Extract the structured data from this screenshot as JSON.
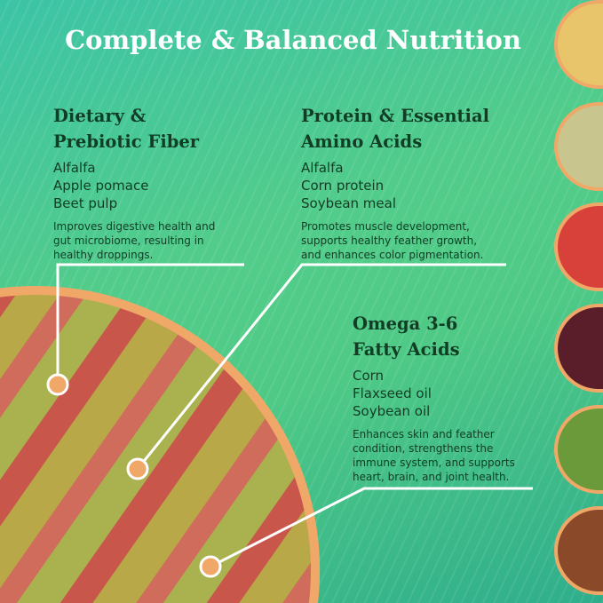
{
  "title": "Complete & Balanced Nutrition",
  "sections": [
    {
      "heading": "Dietary &\nPrebiotic Fiber",
      "ingredients": "Alfalfa\nApple pomace\nBeet pulp",
      "description": "Improves digestive health and\ngut microbiome, resulting in\nhealthy droppings."
    },
    {
      "heading": "Protein & Essential\nAmino Acids",
      "ingredients": "Alfalfa\nCorn protein\nSoybean meal",
      "description": "Promotes muscle development,\nsupports healthy feather growth,\nand enhances color pigmentation."
    },
    {
      "heading": "Omega 3-6\nFatty Acids",
      "ingredients": "Corn\nFlaxseed oil\nSoybean oil",
      "description": "Enhances skin and feather\ncondition, strengthens the\nimmune system, and supports\nheart, brain, and joint health."
    }
  ],
  "ingredient_images": [
    "corn",
    "soybean-meal",
    "apple",
    "beet",
    "alfalfa",
    "flaxseed"
  ],
  "colors": {
    "accent": "#f0a868",
    "heading": "#123d25",
    "title": "#ffffff"
  }
}
